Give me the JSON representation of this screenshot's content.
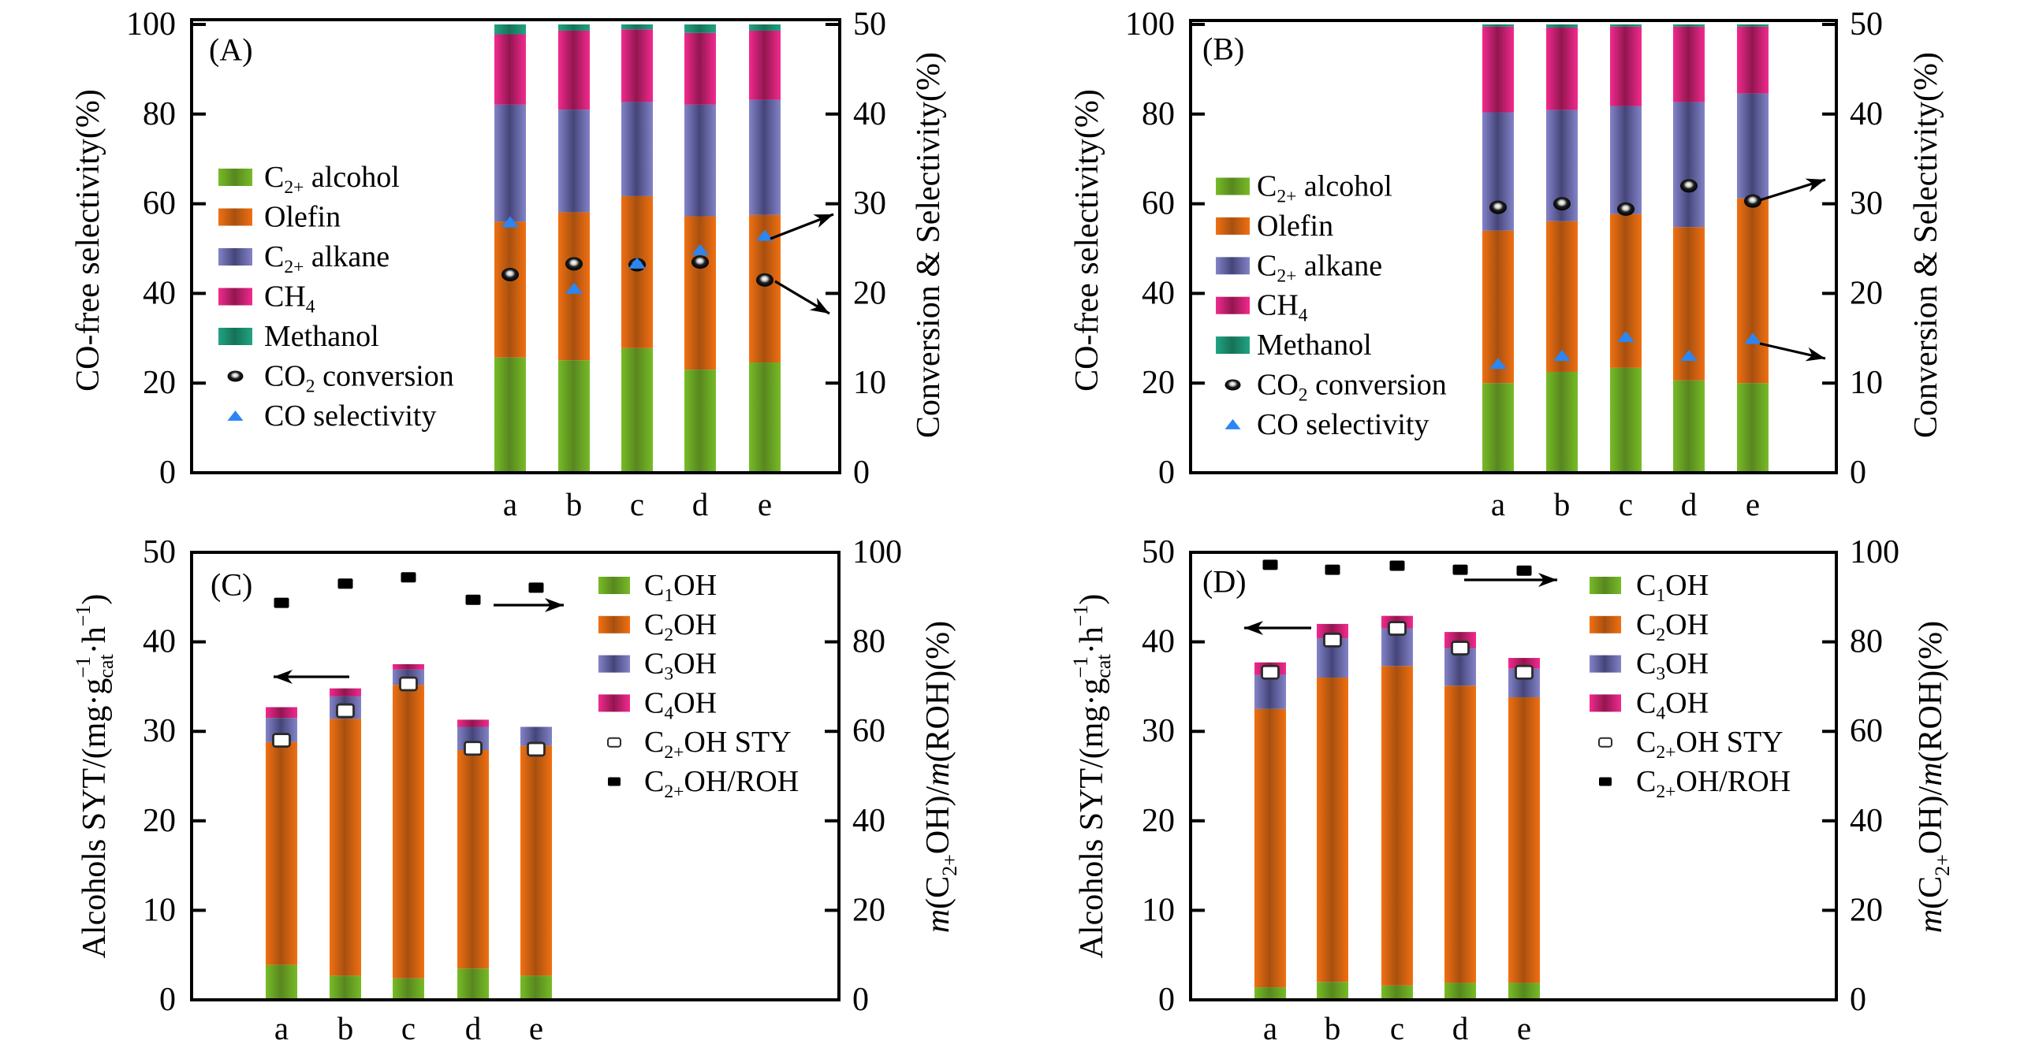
{
  "chart_data": [
    {
      "panel_label": "(A)",
      "type": "bar",
      "stacked": true,
      "categories": [
        "a",
        "b",
        "c",
        "d",
        "e"
      ],
      "ylabel": [
        {
          "t": "CO-free selectivity(%)"
        }
      ],
      "ylabel_right": [
        {
          "t": "Conversion & Selectivity(%)"
        }
      ],
      "ylim": [
        0,
        100
      ],
      "yticks": [
        0,
        20,
        40,
        60,
        80,
        100
      ],
      "ylim_right": [
        0,
        50
      ],
      "yticks_right": [
        0,
        10,
        20,
        30,
        40,
        50
      ],
      "grid": false,
      "legend_position": "center-left",
      "series": [
        {
          "name": "C2+ alcohol",
          "label": [
            {
              "t": "C"
            },
            {
              "t": "2+",
              "sub": true
            },
            {
              "t": " alcohol"
            }
          ],
          "kind": "stacked-bar",
          "axis": "left",
          "color": "#77BB27",
          "shade": "#58871F",
          "values": [
            25.7,
            25.1,
            27.8,
            23.0,
            24.6
          ]
        },
        {
          "name": "Olefin",
          "label": [
            {
              "t": "Olefin"
            }
          ],
          "kind": "stacked-bar",
          "axis": "left",
          "color": "#F07012",
          "shade": "#A8500F",
          "values": [
            30.3,
            33.0,
            33.9,
            34.2,
            32.9
          ]
        },
        {
          "name": "C2+ alkane",
          "label": [
            {
              "t": "C"
            },
            {
              "t": "2+",
              "sub": true
            },
            {
              "t": " alkane"
            }
          ],
          "kind": "stacked-bar",
          "axis": "left",
          "color": "#8383C8",
          "shade": "#45457A",
          "values": [
            26.1,
            22.9,
            21.0,
            24.9,
            25.7
          ]
        },
        {
          "name": "CH4",
          "label": [
            {
              "t": "CH"
            },
            {
              "t": "4",
              "sub": true
            }
          ],
          "kind": "stacked-bar",
          "axis": "left",
          "color": "#F22A8E",
          "shade": "#921650",
          "values": [
            15.7,
            17.6,
            16.2,
            16.0,
            15.4
          ]
        },
        {
          "name": "Methanol",
          "label": [
            {
              "t": "Methanol"
            }
          ],
          "kind": "stacked-bar",
          "axis": "left",
          "color": "#22A382",
          "shade": "#157258",
          "values": [
            2.2,
            1.4,
            1.1,
            1.9,
            1.4
          ]
        },
        {
          "name": "CO2 conversion",
          "label": [
            {
              "t": "CO"
            },
            {
              "t": "2",
              "sub": true
            },
            {
              "t": " conversion"
            }
          ],
          "kind": "scatter",
          "marker": "sphere",
          "axis": "right",
          "color": "#000000",
          "values": [
            22.1,
            23.3,
            23.2,
            23.5,
            21.5
          ]
        },
        {
          "name": "CO selectivity",
          "label": [
            {
              "t": "CO selectivity"
            }
          ],
          "kind": "scatter",
          "marker": "triangle",
          "axis": "right",
          "color": "#2B86F2",
          "values": [
            27.9,
            20.5,
            23.3,
            24.8,
            26.4
          ]
        }
      ],
      "annotations": [
        {
          "type": "arrow",
          "from_series": "CO selectivity",
          "points_to": "right-axis"
        },
        {
          "type": "arrow",
          "from_series": "CO2 conversion",
          "points_to": "right-axis"
        }
      ]
    },
    {
      "panel_label": "(B)",
      "type": "bar",
      "stacked": true,
      "categories": [
        "a",
        "b",
        "c",
        "d",
        "e"
      ],
      "ylabel": [
        {
          "t": "CO-free selectivity(%)"
        }
      ],
      "ylabel_right": [
        {
          "t": "Conversion & Selectivity(%)"
        }
      ],
      "ylim": [
        0,
        100
      ],
      "yticks": [
        0,
        20,
        40,
        60,
        80,
        100
      ],
      "ylim_right": [
        0,
        50
      ],
      "yticks_right": [
        0,
        10,
        20,
        30,
        40,
        50
      ],
      "grid": false,
      "legend_position": "center-left",
      "series": [
        {
          "name": "C2+ alcohol",
          "label": [
            {
              "t": "C"
            },
            {
              "t": "2+",
              "sub": true
            },
            {
              "t": " alcohol"
            }
          ],
          "kind": "stacked-bar",
          "axis": "left",
          "color": "#77BB27",
          "shade": "#58871F",
          "values": [
            20.0,
            22.5,
            23.4,
            20.6,
            20.0
          ]
        },
        {
          "name": "Olefin",
          "label": [
            {
              "t": "Olefin"
            }
          ],
          "kind": "stacked-bar",
          "axis": "left",
          "color": "#F07012",
          "shade": "#A8500F",
          "values": [
            34.0,
            33.6,
            34.3,
            34.2,
            41.2
          ]
        },
        {
          "name": "C2+ alkane",
          "label": [
            {
              "t": "C"
            },
            {
              "t": "2+",
              "sub": true
            },
            {
              "t": " alkane"
            }
          ],
          "kind": "stacked-bar",
          "axis": "left",
          "color": "#8383C8",
          "shade": "#45457A",
          "values": [
            26.4,
            24.8,
            24.1,
            27.9,
            23.4
          ]
        },
        {
          "name": "CH4",
          "label": [
            {
              "t": "CH"
            },
            {
              "t": "4",
              "sub": true
            }
          ],
          "kind": "stacked-bar",
          "axis": "left",
          "color": "#F22A8E",
          "shade": "#921650",
          "values": [
            19.1,
            18.4,
            17.7,
            16.8,
            14.9
          ]
        },
        {
          "name": "Methanol",
          "label": [
            {
              "t": "Methanol"
            }
          ],
          "kind": "stacked-bar",
          "axis": "left",
          "color": "#22A382",
          "shade": "#157258",
          "values": [
            0.5,
            0.7,
            0.5,
            0.5,
            0.5
          ]
        },
        {
          "name": "CO2 conversion",
          "label": [
            {
              "t": "CO"
            },
            {
              "t": "2",
              "sub": true
            },
            {
              "t": " conversion"
            }
          ],
          "kind": "scatter",
          "marker": "sphere",
          "axis": "right",
          "color": "#000000",
          "values": [
            29.6,
            30.0,
            29.4,
            32.0,
            30.3
          ]
        },
        {
          "name": "CO selectivity",
          "label": [
            {
              "t": "CO selectivity"
            }
          ],
          "kind": "scatter",
          "marker": "triangle",
          "axis": "right",
          "color": "#2B86F2",
          "values": [
            12.1,
            13.0,
            15.1,
            13.0,
            14.9
          ]
        }
      ],
      "annotations": [
        {
          "type": "arrow",
          "from_series": "CO2 conversion",
          "points_to": "right-axis"
        },
        {
          "type": "arrow",
          "from_series": "CO selectivity",
          "points_to": "right-axis"
        }
      ]
    },
    {
      "panel_label": "(C)",
      "type": "bar",
      "stacked": true,
      "categories": [
        "a",
        "b",
        "c",
        "d",
        "e"
      ],
      "ylabel": [
        {
          "t": "Alcohols SYT/(mg·g"
        },
        {
          "t": "−1",
          "sup": true
        },
        {
          "t": "cat",
          "sub": true
        },
        {
          "t": "·h"
        },
        {
          "t": "−1",
          "sup": true
        },
        {
          "t": ")"
        }
      ],
      "ylabel_right": [
        {
          "t": "m",
          "italic": true
        },
        {
          "t": "(C"
        },
        {
          "t": "2+",
          "sub": true
        },
        {
          "t": "OH)/"
        },
        {
          "t": "m",
          "italic": true
        },
        {
          "t": "(ROH)(%)"
        }
      ],
      "ylim": [
        0,
        50
      ],
      "yticks": [
        0,
        10,
        20,
        30,
        40,
        50
      ],
      "ylim_right": [
        0,
        100
      ],
      "yticks_right": [
        0,
        20,
        40,
        60,
        80,
        100
      ],
      "grid": false,
      "legend_position": "top-right",
      "series": [
        {
          "name": "C1OH",
          "label": [
            {
              "t": "C"
            },
            {
              "t": "1",
              "sub": true
            },
            {
              "t": "OH"
            }
          ],
          "kind": "stacked-bar",
          "axis": "left",
          "color": "#77BB27",
          "shade": "#58871F",
          "values": [
            3.9,
            2.7,
            2.4,
            3.5,
            2.7
          ]
        },
        {
          "name": "C2OH",
          "label": [
            {
              "t": "C"
            },
            {
              "t": "2",
              "sub": true
            },
            {
              "t": "OH"
            }
          ],
          "kind": "stacked-bar",
          "axis": "left",
          "color": "#F07012",
          "shade": "#A8500F",
          "values": [
            24.9,
            28.7,
            32.8,
            24.4,
            25.7
          ]
        },
        {
          "name": "C3OH",
          "label": [
            {
              "t": "C"
            },
            {
              "t": "3",
              "sub": true
            },
            {
              "t": "OH"
            }
          ],
          "kind": "stacked-bar",
          "axis": "left",
          "color": "#8383C8",
          "shade": "#45457A",
          "values": [
            2.7,
            2.5,
            1.7,
            2.6,
            2.1
          ]
        },
        {
          "name": "C4OH",
          "label": [
            {
              "t": "C"
            },
            {
              "t": "4",
              "sub": true
            },
            {
              "t": "OH"
            }
          ],
          "kind": "stacked-bar",
          "axis": "left",
          "color": "#F22A8E",
          "shade": "#921650",
          "values": [
            1.2,
            0.9,
            0.6,
            0.8,
            0.0
          ]
        },
        {
          "name": "C2+OH STY",
          "label": [
            {
              "t": "C"
            },
            {
              "t": "2+",
              "sub": true
            },
            {
              "t": "OH STY"
            }
          ],
          "kind": "scatter",
          "marker": "open-square",
          "axis": "left",
          "color": "#FFFFFF",
          "values": [
            29.0,
            32.3,
            35.3,
            28.1,
            28.0
          ]
        },
        {
          "name": "C2+OH/ROH",
          "label": [
            {
              "t": "C"
            },
            {
              "t": "2+",
              "sub": true
            },
            {
              "t": "OH/ROH"
            }
          ],
          "kind": "scatter",
          "marker": "filled-square",
          "axis": "right",
          "color": "#000000",
          "values": [
            88.7,
            93.0,
            94.4,
            89.4,
            92.1
          ]
        }
      ],
      "annotations": [
        {
          "type": "arrow",
          "from_series": "C2+OH STY",
          "points_to": "left-axis"
        },
        {
          "type": "arrow",
          "from_series": "C2+OH/ROH",
          "points_to": "right-axis"
        }
      ]
    },
    {
      "panel_label": "(D)",
      "type": "bar",
      "stacked": true,
      "categories": [
        "a",
        "b",
        "c",
        "d",
        "e"
      ],
      "ylabel": [
        {
          "t": "Alcohols SYT/(mg·g"
        },
        {
          "t": "−1",
          "sup": true
        },
        {
          "t": "cat",
          "sub": true
        },
        {
          "t": "·h"
        },
        {
          "t": "−1",
          "sup": true
        },
        {
          "t": ")"
        }
      ],
      "ylabel_right": [
        {
          "t": "m",
          "italic": true
        },
        {
          "t": "(C"
        },
        {
          "t": "2+",
          "sub": true
        },
        {
          "t": "OH)/"
        },
        {
          "t": "m",
          "italic": true
        },
        {
          "t": "(ROH)(%)"
        }
      ],
      "ylim": [
        0,
        50
      ],
      "yticks": [
        0,
        10,
        20,
        30,
        40,
        50
      ],
      "ylim_right": [
        0,
        100
      ],
      "yticks_right": [
        0,
        20,
        40,
        60,
        80,
        100
      ],
      "grid": false,
      "legend_position": "top-right",
      "series": [
        {
          "name": "C1OH",
          "label": [
            {
              "t": "C"
            },
            {
              "t": "1",
              "sub": true
            },
            {
              "t": "OH"
            }
          ],
          "kind": "stacked-bar",
          "axis": "left",
          "color": "#77BB27",
          "shade": "#58871F",
          "values": [
            1.4,
            2.0,
            1.6,
            1.9,
            1.9
          ]
        },
        {
          "name": "C2OH",
          "label": [
            {
              "t": "C"
            },
            {
              "t": "2",
              "sub": true
            },
            {
              "t": "OH"
            }
          ],
          "kind": "stacked-bar",
          "axis": "left",
          "color": "#F07012",
          "shade": "#A8500F",
          "values": [
            31.1,
            34.0,
            35.7,
            33.2,
            31.9
          ]
        },
        {
          "name": "C3OH",
          "label": [
            {
              "t": "C"
            },
            {
              "t": "3",
              "sub": true
            },
            {
              "t": "OH"
            }
          ],
          "kind": "stacked-bar",
          "axis": "left",
          "color": "#8383C8",
          "shade": "#45457A",
          "values": [
            3.8,
            4.4,
            4.2,
            4.2,
            3.2
          ]
        },
        {
          "name": "C4OH",
          "label": [
            {
              "t": "C"
            },
            {
              "t": "4",
              "sub": true
            },
            {
              "t": "OH"
            }
          ],
          "kind": "stacked-bar",
          "axis": "left",
          "color": "#F22A8E",
          "shade": "#921650",
          "values": [
            1.4,
            1.6,
            1.4,
            1.8,
            1.2
          ]
        },
        {
          "name": "C2+OH STY",
          "label": [
            {
              "t": "C"
            },
            {
              "t": "2+",
              "sub": true
            },
            {
              "t": "OH STY"
            }
          ],
          "kind": "scatter",
          "marker": "open-square",
          "axis": "left",
          "color": "#FFFFFF",
          "values": [
            36.6,
            40.2,
            41.5,
            39.3,
            36.6
          ]
        },
        {
          "name": "C2+OH/ROH",
          "label": [
            {
              "t": "C"
            },
            {
              "t": "2+",
              "sub": true
            },
            {
              "t": "OH/ROH"
            }
          ],
          "kind": "scatter",
          "marker": "filled-square",
          "axis": "right",
          "color": "#000000",
          "values": [
            97.2,
            96.1,
            97.0,
            96.1,
            95.9
          ]
        }
      ],
      "annotations": [
        {
          "type": "arrow",
          "from_series": "C2+OH STY",
          "points_to": "left-axis"
        },
        {
          "type": "arrow",
          "from_series": "C2+OH/ROH",
          "points_to": "right-axis"
        }
      ]
    }
  ]
}
